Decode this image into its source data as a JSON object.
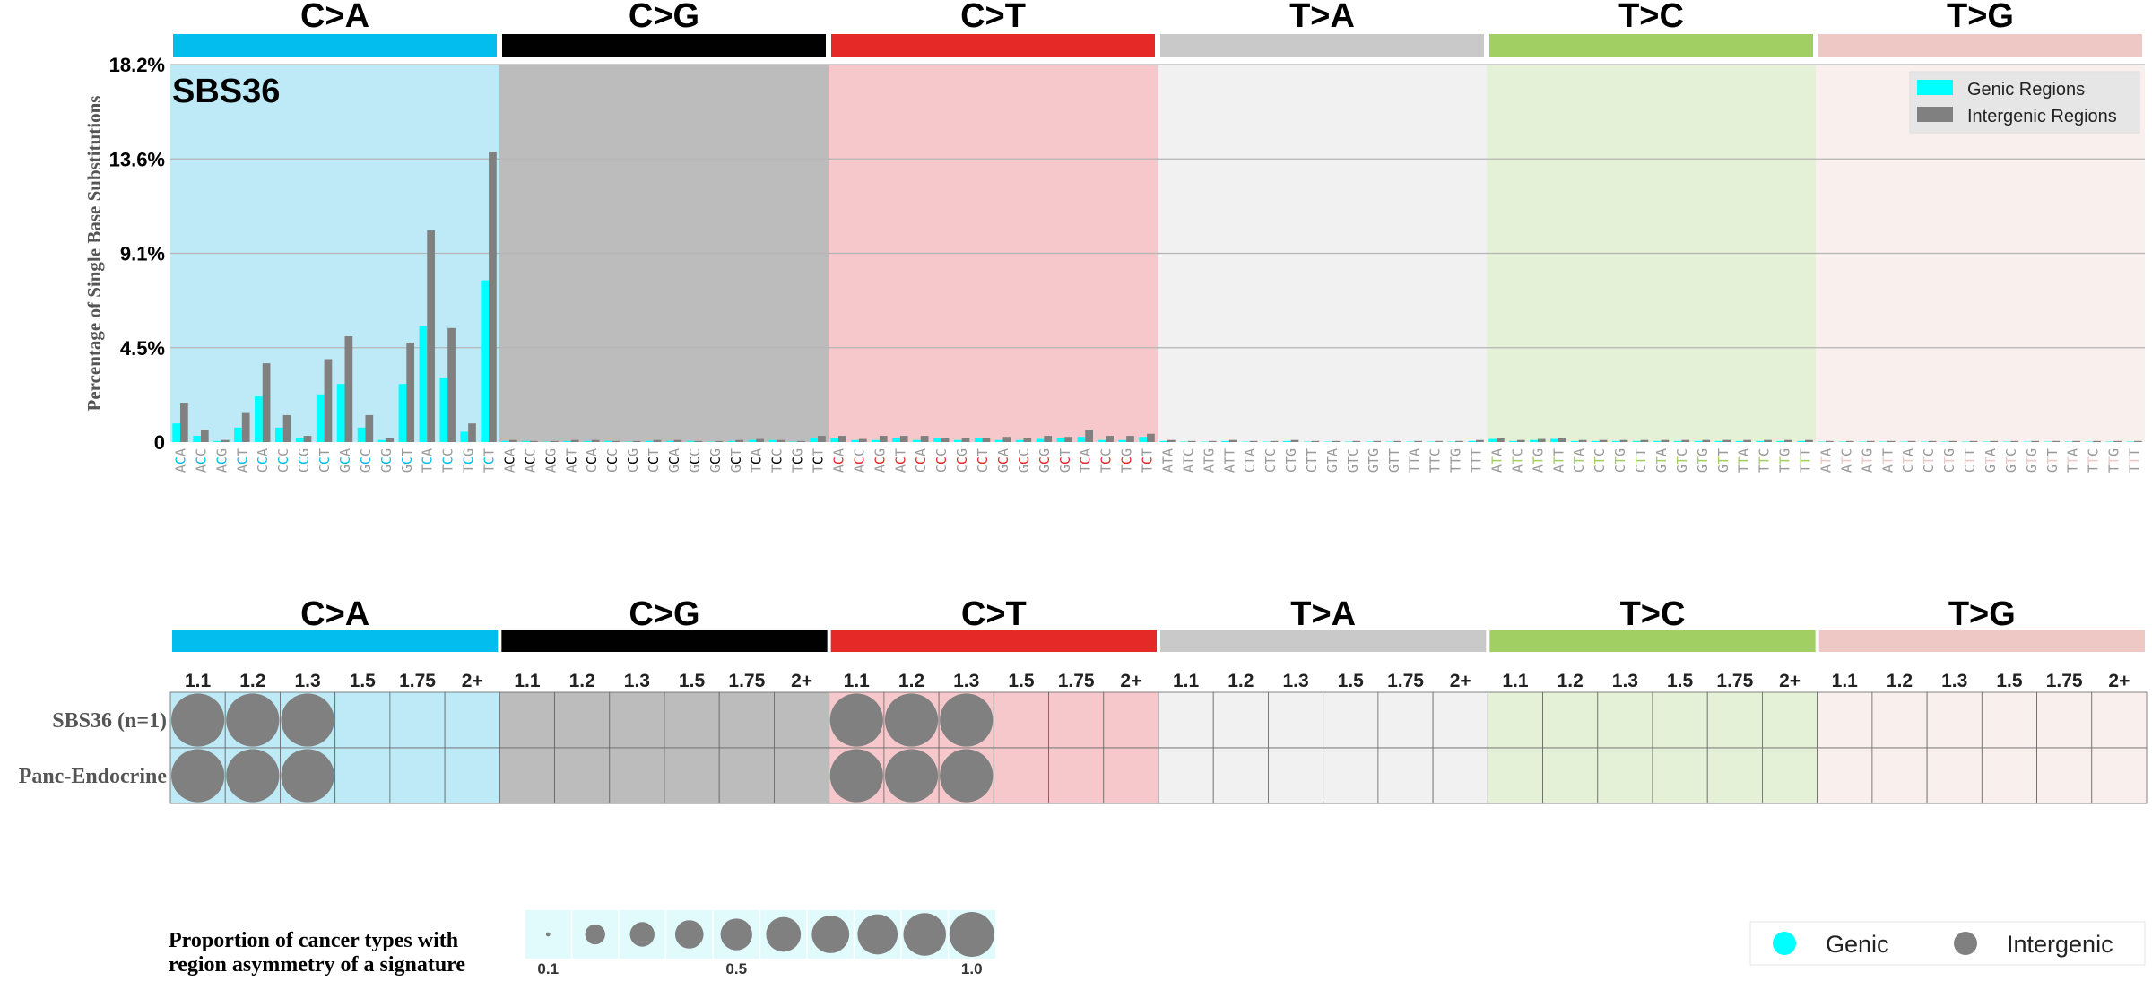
{
  "chart_data": [
    {
      "type": "bar",
      "signature_label": "SBS36",
      "ylabel": "Percentage of Single Base Substitutions",
      "ylim": [
        0,
        18.2
      ],
      "yticks": [
        "0",
        "4.5%",
        "9.1%",
        "13.6%",
        "18.2%"
      ],
      "ytick_values": [
        0,
        4.55,
        9.1,
        13.65,
        18.2
      ],
      "grid": true,
      "legend_position": "top-right",
      "mutation_types": [
        "C>A",
        "C>G",
        "C>T",
        "T>A",
        "T>C",
        "T>G"
      ],
      "type_colors": [
        "#03bdee",
        "#010101",
        "#e42926",
        "#cac9c9",
        "#a1cf64",
        "#edc8c5"
      ],
      "panel_colors": [
        "#bdeaf6",
        "#bcbcbc",
        "#f6c8cb",
        "#f1f1f1",
        "#e5f1d7",
        "#f9efec"
      ],
      "contexts": [
        "ACA",
        "ACC",
        "ACG",
        "ACT",
        "CCA",
        "CCC",
        "CCG",
        "CCT",
        "GCA",
        "GCC",
        "GCG",
        "GCT",
        "TCA",
        "TCC",
        "TCG",
        "TCT",
        "ACA",
        "ACC",
        "ACG",
        "ACT",
        "CCA",
        "CCC",
        "CCG",
        "CCT",
        "GCA",
        "GCC",
        "GCG",
        "GCT",
        "TCA",
        "TCC",
        "TCG",
        "TCT",
        "ACA",
        "ACC",
        "ACG",
        "ACT",
        "CCA",
        "CCC",
        "CCG",
        "CCT",
        "GCA",
        "GCC",
        "GCG",
        "GCT",
        "TCA",
        "TCC",
        "TCG",
        "TCT",
        "ATA",
        "ATC",
        "ATG",
        "ATT",
        "CTA",
        "CTC",
        "CTG",
        "CTT",
        "GTA",
        "GTC",
        "GTG",
        "GTT",
        "TTA",
        "TTC",
        "TTG",
        "TTT",
        "ATA",
        "ATC",
        "ATG",
        "ATT",
        "CTA",
        "CTC",
        "CTG",
        "CTT",
        "GTA",
        "GTC",
        "GTG",
        "GTT",
        "TTA",
        "TTC",
        "TTG",
        "TTT",
        "ATA",
        "ATC",
        "ATG",
        "ATT",
        "CTA",
        "CTC",
        "CTG",
        "CTT",
        "GTA",
        "GTC",
        "GTG",
        "GTT",
        "TTA",
        "TTC",
        "TTG",
        "TTT"
      ],
      "series": [
        {
          "name": "Genic Regions",
          "color": "#00ffff",
          "values": [
            0.9,
            0.3,
            0.05,
            0.7,
            2.2,
            0.7,
            0.2,
            2.3,
            2.8,
            0.7,
            0.1,
            2.8,
            5.6,
            3.1,
            0.5,
            7.8,
            0.05,
            0.05,
            0.02,
            0.05,
            0.05,
            0.05,
            0.02,
            0.05,
            0.05,
            0.05,
            0.02,
            0.05,
            0.1,
            0.1,
            0.02,
            0.2,
            0.2,
            0.1,
            0.1,
            0.2,
            0.1,
            0.2,
            0.1,
            0.2,
            0.1,
            0.1,
            0.15,
            0.2,
            0.25,
            0.1,
            0.1,
            0.25,
            0.05,
            0.02,
            0.02,
            0.05,
            0.02,
            0.02,
            0.05,
            0.02,
            0.02,
            0.02,
            0.02,
            0.02,
            0.02,
            0.02,
            0.02,
            0.05,
            0.15,
            0.05,
            0.1,
            0.15,
            0.05,
            0.05,
            0.05,
            0.05,
            0.05,
            0.05,
            0.05,
            0.05,
            0.05,
            0.05,
            0.05,
            0.05,
            0.02,
            0.02,
            0.02,
            0.02,
            0.02,
            0.02,
            0.02,
            0.02,
            0.02,
            0.02,
            0.02,
            0.02,
            0.02,
            0.02,
            0.02,
            0.02
          ]
        },
        {
          "name": "Intergenic Regions",
          "color": "#808080",
          "values": [
            1.9,
            0.6,
            0.1,
            1.4,
            3.8,
            1.3,
            0.3,
            4.0,
            5.1,
            1.3,
            0.2,
            4.8,
            10.2,
            5.5,
            0.9,
            14.0,
            0.1,
            0.05,
            0.05,
            0.1,
            0.1,
            0.05,
            0.05,
            0.1,
            0.1,
            0.05,
            0.05,
            0.1,
            0.15,
            0.1,
            0.05,
            0.3,
            0.3,
            0.15,
            0.3,
            0.3,
            0.3,
            0.2,
            0.2,
            0.2,
            0.25,
            0.2,
            0.3,
            0.25,
            0.6,
            0.3,
            0.3,
            0.4,
            0.1,
            0.05,
            0.05,
            0.1,
            0.05,
            0.05,
            0.1,
            0.05,
            0.05,
            0.05,
            0.05,
            0.05,
            0.05,
            0.05,
            0.05,
            0.1,
            0.2,
            0.1,
            0.15,
            0.2,
            0.1,
            0.1,
            0.1,
            0.1,
            0.1,
            0.1,
            0.1,
            0.1,
            0.1,
            0.1,
            0.1,
            0.1,
            0.05,
            0.05,
            0.05,
            0.05,
            0.05,
            0.05,
            0.05,
            0.05,
            0.05,
            0.05,
            0.05,
            0.05,
            0.05,
            0.05,
            0.05,
            0.05
          ]
        }
      ]
    },
    {
      "type": "heatmap",
      "mutation_types": [
        "C>A",
        "C>G",
        "C>T",
        "T>A",
        "T>C",
        "T>G"
      ],
      "thresholds": [
        "1.1",
        "1.2",
        "1.3",
        "1.5",
        "1.75",
        "2+"
      ],
      "rows": [
        {
          "label": "SBS36 (n=1)",
          "cells": [
            {
              "type": "C>A",
              "threshold": "1.1",
              "proportion": 1.0,
              "strand": "Intergenic"
            },
            {
              "type": "C>A",
              "threshold": "1.2",
              "proportion": 1.0,
              "strand": "Intergenic"
            },
            {
              "type": "C>A",
              "threshold": "1.3",
              "proportion": 1.0,
              "strand": "Intergenic"
            },
            {
              "type": "C>T",
              "threshold": "1.1",
              "proportion": 1.0,
              "strand": "Intergenic"
            },
            {
              "type": "C>T",
              "threshold": "1.2",
              "proportion": 1.0,
              "strand": "Intergenic"
            },
            {
              "type": "C>T",
              "threshold": "1.3",
              "proportion": 1.0,
              "strand": "Intergenic"
            }
          ]
        },
        {
          "label": "Panc-Endocrine",
          "cells": [
            {
              "type": "C>A",
              "threshold": "1.1",
              "proportion": 1.0,
              "strand": "Intergenic"
            },
            {
              "type": "C>A",
              "threshold": "1.2",
              "proportion": 1.0,
              "strand": "Intergenic"
            },
            {
              "type": "C>A",
              "threshold": "1.3",
              "proportion": 1.0,
              "strand": "Intergenic"
            },
            {
              "type": "C>T",
              "threshold": "1.1",
              "proportion": 1.0,
              "strand": "Intergenic"
            },
            {
              "type": "C>T",
              "threshold": "1.2",
              "proportion": 1.0,
              "strand": "Intergenic"
            },
            {
              "type": "C>T",
              "threshold": "1.3",
              "proportion": 1.0,
              "strand": "Intergenic"
            }
          ]
        }
      ],
      "proportion_legend": {
        "title_line1": "Proportion of cancer types with",
        "title_line2": "region asymmetry of a signature",
        "values": [
          0.1,
          0.2,
          0.3,
          0.4,
          0.5,
          0.6,
          0.7,
          0.8,
          0.9,
          1.0
        ],
        "tick_labels": [
          "0.1",
          "0.5",
          "1.0"
        ],
        "background": "#e1fbfd"
      },
      "strand_legend": [
        {
          "label": "Genic",
          "color": "#00ffff"
        },
        {
          "label": "Intergenic",
          "color": "#808080"
        }
      ]
    }
  ]
}
